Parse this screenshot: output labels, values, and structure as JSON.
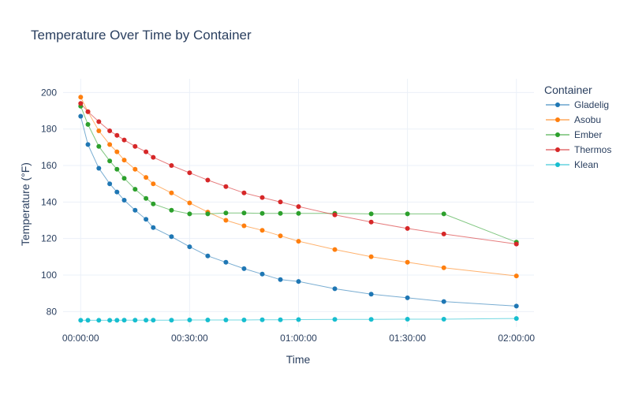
{
  "chart_data": {
    "type": "line",
    "title": "Temperature Over Time by Container",
    "xlabel": "Time",
    "ylabel": "Temperature (°F)",
    "x_unit": "time (hh:mm:ss)",
    "xlim": [
      "00:00:00",
      "02:00:00"
    ],
    "ylim": [
      75,
      205
    ],
    "x_ticks": [
      "00:00:00",
      "00:30:00",
      "01:00:00",
      "01:30:00",
      "02:00:00"
    ],
    "y_ticks": [
      80,
      100,
      120,
      140,
      160,
      180,
      200
    ],
    "grid": true,
    "legend": {
      "title": "Container",
      "position": "top-right, outside plot"
    },
    "series": [
      {
        "name": "Gladelig",
        "color": "#1f77b4",
        "points": [
          [
            "00:00:00",
            187
          ],
          [
            "00:02:00",
            171.5
          ],
          [
            "00:05:00",
            158.5
          ],
          [
            "00:08:00",
            150
          ],
          [
            "00:10:00",
            145.5
          ],
          [
            "00:12:00",
            141
          ],
          [
            "00:15:00",
            135.5
          ],
          [
            "00:18:00",
            130.5
          ],
          [
            "00:20:00",
            126
          ],
          [
            "00:25:00",
            121
          ],
          [
            "00:30:00",
            115.5
          ],
          [
            "00:35:00",
            110.5
          ],
          [
            "00:40:00",
            107
          ],
          [
            "00:45:00",
            103.5
          ],
          [
            "00:50:00",
            100.5
          ],
          [
            "00:55:00",
            97.5
          ],
          [
            "01:00:00",
            96.5
          ],
          [
            "01:10:00",
            92.5
          ],
          [
            "01:20:00",
            89.5
          ],
          [
            "01:30:00",
            87.5
          ],
          [
            "01:40:00",
            85.5
          ],
          [
            "02:00:00",
            83
          ]
        ]
      },
      {
        "name": "Asobu",
        "color": "#ff7f0e",
        "points": [
          [
            "00:00:00",
            197.5
          ],
          [
            "00:02:00",
            189.5
          ],
          [
            "00:05:00",
            179
          ],
          [
            "00:08:00",
            171.5
          ],
          [
            "00:10:00",
            167.5
          ],
          [
            "00:12:00",
            163
          ],
          [
            "00:15:00",
            158
          ],
          [
            "00:18:00",
            153.5
          ],
          [
            "00:20:00",
            150
          ],
          [
            "00:25:00",
            145
          ],
          [
            "00:30:00",
            139.5
          ],
          [
            "00:35:00",
            134.5
          ],
          [
            "00:40:00",
            130
          ],
          [
            "00:45:00",
            127
          ],
          [
            "00:50:00",
            124.5
          ],
          [
            "00:55:00",
            121.5
          ],
          [
            "01:00:00",
            118.5
          ],
          [
            "01:10:00",
            114
          ],
          [
            "01:20:00",
            110
          ],
          [
            "01:30:00",
            107
          ],
          [
            "01:40:00",
            104
          ],
          [
            "02:00:00",
            99.5
          ]
        ]
      },
      {
        "name": "Ember",
        "color": "#2ca02c",
        "points": [
          [
            "00:00:00",
            192.5
          ],
          [
            "00:02:00",
            182.5
          ],
          [
            "00:05:00",
            170.5
          ],
          [
            "00:08:00",
            162.5
          ],
          [
            "00:10:00",
            158
          ],
          [
            "00:12:00",
            153
          ],
          [
            "00:15:00",
            147
          ],
          [
            "00:18:00",
            142
          ],
          [
            "00:20:00",
            139
          ],
          [
            "00:25:00",
            135.5
          ],
          [
            "00:30:00",
            133.5
          ],
          [
            "00:35:00",
            133.5
          ],
          [
            "00:40:00",
            134
          ],
          [
            "00:45:00",
            134
          ],
          [
            "00:50:00",
            133.8
          ],
          [
            "00:55:00",
            133.8
          ],
          [
            "01:00:00",
            133.8
          ],
          [
            "01:10:00",
            133.8
          ],
          [
            "01:20:00",
            133.5
          ],
          [
            "01:30:00",
            133.5
          ],
          [
            "01:40:00",
            133.5
          ],
          [
            "02:00:00",
            118
          ]
        ]
      },
      {
        "name": "Thermos",
        "color": "#d62728",
        "points": [
          [
            "00:00:00",
            194
          ],
          [
            "00:02:00",
            189.5
          ],
          [
            "00:05:00",
            184
          ],
          [
            "00:08:00",
            179
          ],
          [
            "00:10:00",
            176.5
          ],
          [
            "00:12:00",
            174
          ],
          [
            "00:15:00",
            170.5
          ],
          [
            "00:18:00",
            167.5
          ],
          [
            "00:20:00",
            164.5
          ],
          [
            "00:25:00",
            160
          ],
          [
            "00:30:00",
            156
          ],
          [
            "00:35:00",
            152
          ],
          [
            "00:40:00",
            148.5
          ],
          [
            "00:45:00",
            145
          ],
          [
            "00:50:00",
            142.5
          ],
          [
            "00:55:00",
            140
          ],
          [
            "01:00:00",
            137.5
          ],
          [
            "01:10:00",
            133
          ],
          [
            "01:20:00",
            129
          ],
          [
            "01:30:00",
            125.5
          ],
          [
            "01:40:00",
            122.5
          ],
          [
            "02:00:00",
            117
          ]
        ]
      },
      {
        "name": "Klean",
        "color": "#17becf",
        "points": [
          [
            "00:00:00",
            75.2
          ],
          [
            "00:02:00",
            75.2
          ],
          [
            "00:05:00",
            75.2
          ],
          [
            "00:08:00",
            75.2
          ],
          [
            "00:10:00",
            75.2
          ],
          [
            "00:12:00",
            75.3
          ],
          [
            "00:15:00",
            75.3
          ],
          [
            "00:18:00",
            75.3
          ],
          [
            "00:20:00",
            75.3
          ],
          [
            "00:25:00",
            75.3
          ],
          [
            "00:30:00",
            75.4
          ],
          [
            "00:35:00",
            75.4
          ],
          [
            "00:40:00",
            75.4
          ],
          [
            "00:45:00",
            75.4
          ],
          [
            "00:50:00",
            75.5
          ],
          [
            "00:55:00",
            75.5
          ],
          [
            "01:00:00",
            75.6
          ],
          [
            "01:10:00",
            75.7
          ],
          [
            "01:20:00",
            75.7
          ],
          [
            "01:30:00",
            75.8
          ],
          [
            "01:40:00",
            75.8
          ],
          [
            "02:00:00",
            76.2
          ]
        ]
      }
    ]
  }
}
